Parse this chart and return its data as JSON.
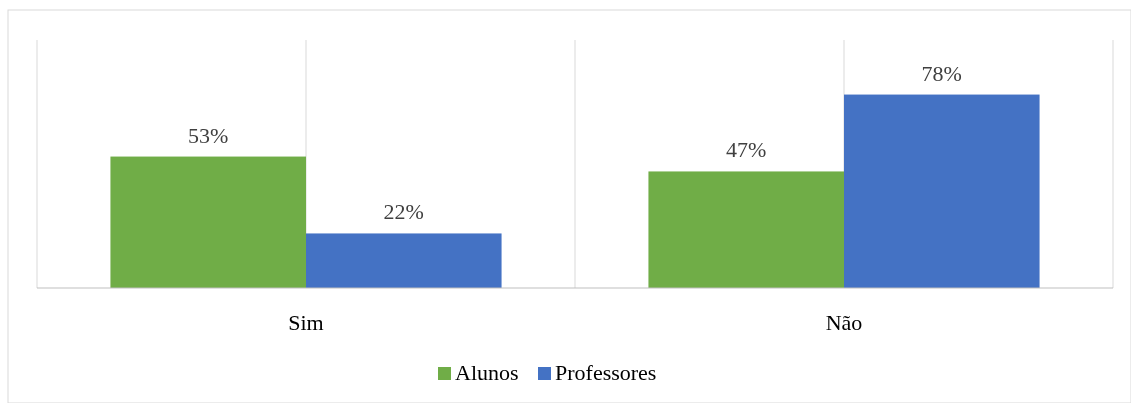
{
  "chart_data": {
    "type": "bar",
    "categories": [
      "Sim",
      "Não"
    ],
    "series": [
      {
        "name": "Alunos",
        "color": "#70ad47",
        "values": [
          53,
          47
        ],
        "value_labels": [
          "53%",
          "47%"
        ]
      },
      {
        "name": "Professores",
        "color": "#4472c4",
        "values": [
          22,
          78
        ],
        "value_labels": [
          "22%",
          "78%"
        ]
      }
    ],
    "ylim": [
      0,
      100
    ],
    "tick_labels": "x",
    "grid": "x",
    "legend": "bottom"
  }
}
